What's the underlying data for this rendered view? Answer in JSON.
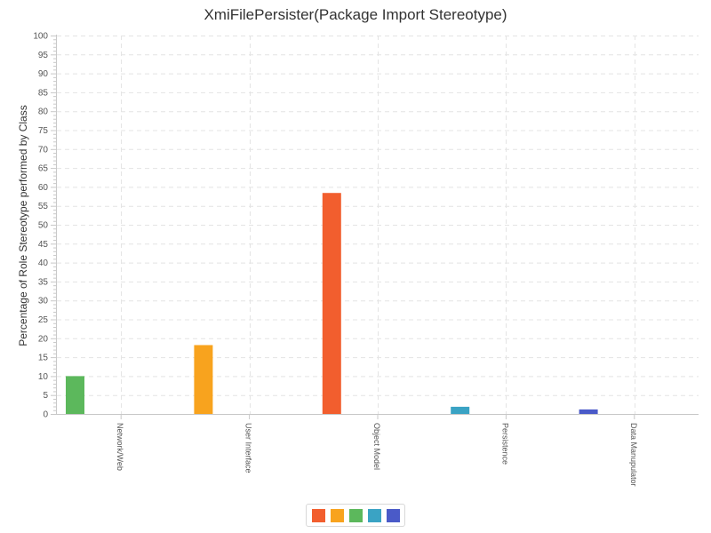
{
  "chart_data": {
    "type": "bar",
    "title": "XmiFilePersister(Package Import Stereotype)",
    "xlabel": "",
    "ylabel": "Percentage of Role Stereotype performed by Class",
    "ylim": [
      0,
      100
    ],
    "yticks": [
      "0",
      "5",
      "10",
      "15",
      "20",
      "25",
      "30",
      "35",
      "40",
      "45",
      "50",
      "55",
      "60",
      "65",
      "70",
      "75",
      "80",
      "85",
      "90",
      "95",
      "100"
    ],
    "grid": true,
    "legend": "bottom-center",
    "categories": [
      "Network/Web",
      "User Interface",
      "Object Model",
      "Persistence",
      "Data Manupulator"
    ],
    "values": [
      10,
      18.2,
      58.4,
      1.9,
      1.2
    ],
    "colors": [
      "#5cb85c",
      "#f8a31e",
      "#f25e2e",
      "#3aa3c4",
      "#4a5ac8"
    ],
    "legend_colors": [
      "#f25e2e",
      "#f8a31e",
      "#5cb85c",
      "#3aa3c4",
      "#4a5ac8"
    ]
  }
}
